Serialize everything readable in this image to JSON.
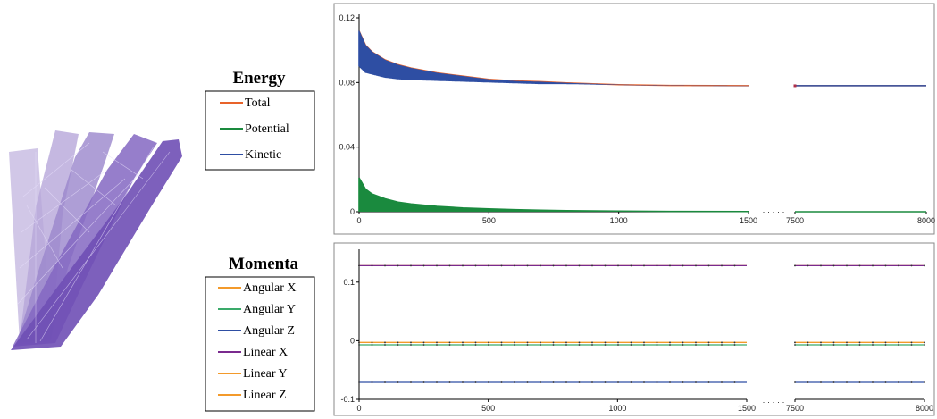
{
  "chart_data": [
    {
      "type": "line",
      "title": "Energy",
      "xlabel": "",
      "ylabel": "",
      "ylim": [
        0,
        0.12
      ],
      "yticks": [
        0,
        0.04,
        0.08,
        0.12
      ],
      "ytick_labels": [
        "0",
        "0.04",
        "0.08",
        "0.12"
      ],
      "x_segments": [
        [
          0,
          1500
        ],
        [
          7500,
          8000
        ]
      ],
      "xticks": [
        0,
        500,
        1000,
        1500,
        7500,
        8000
      ],
      "xtick_labels": [
        "0",
        "500",
        "1000",
        "1500",
        "7500",
        "8000"
      ],
      "axis_break_marker": "· · · · ·",
      "grid": false,
      "legend_placement": "left",
      "series": [
        {
          "name": "Total",
          "color": "#e8632a",
          "x": [
            0,
            25,
            50,
            100,
            150,
            200,
            300,
            400,
            500,
            600,
            700,
            800,
            1000,
            1200,
            1500,
            7500,
            8000
          ],
          "values": [
            0.112,
            0.103,
            0.099,
            0.094,
            0.091,
            0.089,
            0.086,
            0.084,
            0.082,
            0.081,
            0.0805,
            0.0798,
            0.0787,
            0.0782,
            0.078,
            0.078,
            0.078
          ]
        },
        {
          "name": "Potential",
          "color": "#1a8a3e",
          "x": [
            0,
            25,
            50,
            100,
            150,
            200,
            300,
            400,
            500,
            600,
            700,
            800,
            1000,
            1200,
            1500,
            7500,
            8000
          ],
          "values": [
            0.021,
            0.014,
            0.011,
            0.008,
            0.006,
            0.0048,
            0.0033,
            0.0024,
            0.0018,
            0.0013,
            0.001,
            0.0007,
            0.0004,
            0.0002,
            0.0001,
            0.0,
            0.0
          ],
          "band_min_fraction": 0.0
        },
        {
          "name": "Kinetic",
          "color": "#2e4ea3",
          "x": [
            0,
            25,
            50,
            100,
            150,
            200,
            300,
            400,
            500,
            600,
            700,
            800,
            1000,
            1200,
            1500,
            7500,
            8000
          ],
          "values": [
            0.112,
            0.103,
            0.099,
            0.094,
            0.091,
            0.089,
            0.086,
            0.084,
            0.082,
            0.081,
            0.0805,
            0.0798,
            0.0787,
            0.0782,
            0.078,
            0.078,
            0.078
          ],
          "band_low": [
            0.09,
            0.086,
            0.085,
            0.083,
            0.082,
            0.0815,
            0.081,
            0.0805,
            0.08,
            0.0795,
            0.079,
            0.079,
            0.0785,
            0.078,
            0.0778,
            0.078,
            0.078
          ]
        }
      ]
    },
    {
      "type": "line",
      "title": "Momenta",
      "xlabel": "",
      "ylabel": "",
      "ylim": [
        -0.1,
        0.15
      ],
      "yticks": [
        -0.1,
        0,
        0.1
      ],
      "ytick_labels": [
        "-0.1",
        "0",
        "0.1"
      ],
      "x_segments": [
        [
          0,
          1500
        ],
        [
          7500,
          8000
        ]
      ],
      "xticks": [
        0,
        500,
        1000,
        1500,
        7500,
        8000
      ],
      "xtick_labels": [
        "0",
        "500",
        "1000",
        "1500",
        "7500",
        "8000"
      ],
      "axis_break_marker": "· · · · ·",
      "grid": false,
      "legend_placement": "left",
      "series": [
        {
          "name": "Angular X",
          "color": "#f39a2b",
          "x": [
            0,
            1500,
            7500,
            8000
          ],
          "values": [
            0.128,
            0.128,
            0.128,
            0.128
          ]
        },
        {
          "name": "Angular Y",
          "color": "#3aaa6a",
          "x": [
            0,
            1500,
            7500,
            8000
          ],
          "values": [
            -0.007,
            -0.007,
            -0.007,
            -0.007
          ]
        },
        {
          "name": "Angular Z",
          "color": "#2e4ea3",
          "x": [
            0,
            1500,
            7500,
            8000
          ],
          "values": [
            -0.071,
            -0.071,
            -0.071,
            -0.071
          ]
        },
        {
          "name": "Linear X",
          "color": "#7a2a8e",
          "x": [
            0,
            1500,
            7500,
            8000
          ],
          "values": [
            0.128,
            0.128,
            0.128,
            0.128
          ]
        },
        {
          "name": "Linear Y",
          "color": "#f39a2b",
          "x": [
            0,
            1500,
            7500,
            8000
          ],
          "values": [
            -0.003,
            -0.003,
            -0.003,
            -0.003
          ]
        },
        {
          "name": "Linear Z",
          "color": "#f39a2b",
          "x": [
            0,
            1500,
            7500,
            8000
          ],
          "values": [
            -0.003,
            -0.003,
            -0.003,
            -0.003
          ]
        }
      ]
    }
  ],
  "illustration": {
    "fill": "#7a5cb8",
    "light_fill": "#c4b4e0"
  }
}
